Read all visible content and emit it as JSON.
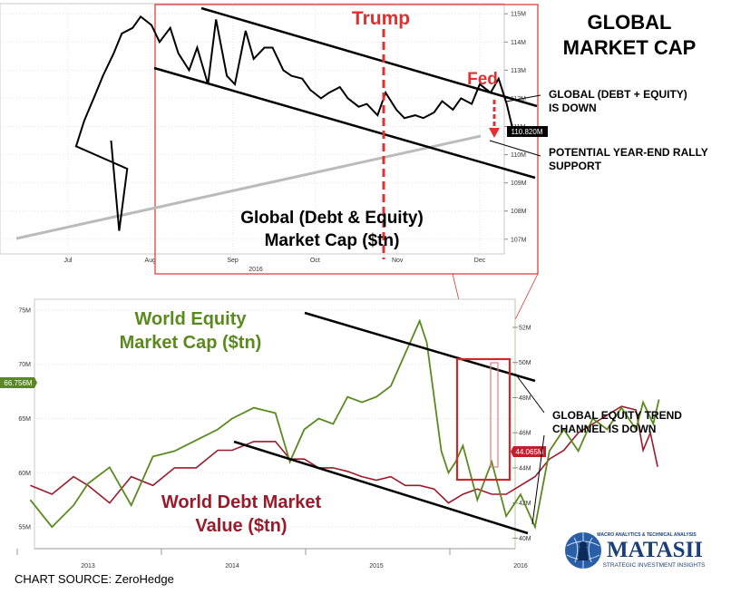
{
  "page": {
    "title_lines": [
      "GLOBAL",
      "MARKET CAP"
    ],
    "source": "CHART SOURCE: ZeroHedge",
    "logo": {
      "top_text": "MACRO ANALYTICS & TECHNICAL ANALYSIS",
      "name": "MATASII",
      "sub_text": "STRATEGIC INVESTMENT INSIGHTS"
    }
  },
  "colors": {
    "equity": "#5a8a1e",
    "debt": "#9b1a2a",
    "highlight": "#e03030",
    "support": "#bbbbbb"
  },
  "chart_data": [
    {
      "type": "line",
      "title": "Global (Debt & Equity) Market Cap ($tn)",
      "title_lines": [
        "Global (Debt & Equity)",
        "Market Cap ($tn)"
      ],
      "x_ticks": [
        "Jul",
        "Aug",
        "Sep",
        "Oct",
        "Nov",
        "Dec"
      ],
      "x_year": "2016",
      "y_ticks": [
        "107M",
        "108M",
        "109M",
        "110M",
        "111M",
        "112M",
        "113M",
        "114M",
        "115M"
      ],
      "ylim": [
        106.8,
        115.2
      ],
      "last_value_label": "110.820M",
      "series": [
        {
          "x": [
            "Jun-24",
            "Jun-27",
            "Jun-30",
            "Jul-05",
            "Jul-08",
            "Jul-12",
            "Jul-15",
            "Jul-19",
            "Jul-22",
            "Jul-26",
            "Jul-29",
            "Aug-02",
            "Aug-05",
            "Aug-09",
            "Aug-12",
            "Aug-16",
            "Aug-19",
            "Aug-23",
            "Aug-26",
            "Aug-30",
            "Sep-02",
            "Sep-06",
            "Sep-09",
            "Sep-13",
            "Sep-16",
            "Sep-20",
            "Sep-23",
            "Sep-27",
            "Sep-30",
            "Oct-04",
            "Oct-07",
            "Oct-11",
            "Oct-14",
            "Oct-18",
            "Oct-21",
            "Oct-25",
            "Oct-28",
            "Nov-01",
            "Nov-04",
            "Nov-08",
            "Nov-11",
            "Nov-15",
            "Nov-18",
            "Nov-22",
            "Nov-25",
            "Nov-29",
            "Dec-02",
            "Dec-06",
            "Dec-09",
            "Dec-12",
            "Dec-14",
            "Dec-16"
          ],
          "values": [
            110.5,
            107.3,
            109.5,
            110.3,
            111.2,
            112.1,
            112.8,
            113.6,
            114.3,
            114.5,
            114.9,
            114.6,
            114.0,
            114.5,
            113.6,
            113.0,
            113.8,
            112.5,
            114.8,
            112.8,
            112.5,
            114.4,
            113.4,
            113.8,
            113.8,
            113.0,
            112.8,
            112.7,
            112.3,
            112.0,
            112.2,
            112.4,
            112.0,
            111.7,
            111.8,
            111.4,
            112.2,
            111.6,
            111.3,
            111.4,
            111.3,
            111.5,
            111.9,
            111.6,
            112.0,
            111.8,
            112.5,
            112.2,
            112.7,
            111.8,
            111.0,
            110.8
          ]
        }
      ],
      "annotations": [
        "Trump",
        "Fed",
        "GLOBAL (DEBT + EQUITY) IS DOWN",
        "POTENTIAL YEAR-END RALLY SUPPORT"
      ]
    },
    {
      "type": "line",
      "x_ticks": [
        "2013",
        "2014",
        "2015",
        "2016"
      ],
      "y_left_ticks": [
        "55M",
        "60M",
        "65M",
        "70M",
        "75M"
      ],
      "y_left_lim": [
        53,
        76
      ],
      "y_right_ticks": [
        "40M",
        "42M",
        "44M",
        "46M",
        "48M",
        "50M",
        "52M"
      ],
      "y_right_lim": [
        39.4,
        53.6
      ],
      "left_value_label": "66.756M",
      "right_value_label": "44.065M",
      "series": [
        {
          "name": "World Equity Market Cap ($tn)",
          "name_lines": [
            "World Equity",
            "Market Cap ($tn)"
          ],
          "axis": "left",
          "x": [
            2012.6,
            2012.75,
            2012.9,
            2013.0,
            2013.15,
            2013.3,
            2013.45,
            2013.6,
            2013.75,
            2013.9,
            2014.0,
            2014.15,
            2014.3,
            2014.4,
            2014.5,
            2014.6,
            2014.7,
            2014.8,
            2014.9,
            2015.0,
            2015.1,
            2015.2,
            2015.3,
            2015.35,
            2015.4,
            2015.45,
            2015.5,
            2015.55,
            2015.6,
            2015.7,
            2015.8,
            2015.9,
            2016.0,
            2016.1,
            2016.2,
            2016.3,
            2016.4,
            2016.5,
            2016.6,
            2016.7,
            2016.8,
            2016.85,
            2016.92,
            2016.96
          ],
          "values": [
            57.5,
            55.0,
            57.0,
            59.0,
            60.5,
            57.0,
            61.5,
            62.0,
            63.0,
            64.0,
            65.0,
            66.0,
            65.5,
            61.0,
            64.0,
            65.0,
            64.5,
            67.0,
            66.5,
            67.0,
            68.0,
            71.0,
            74.0,
            72.0,
            67.0,
            62.0,
            60.0,
            61.0,
            62.5,
            57.5,
            61.0,
            56.0,
            58.0,
            55.0,
            62.0,
            64.0,
            62.0,
            65.0,
            64.0,
            66.0,
            64.0,
            66.5,
            64.5,
            66.756
          ]
        },
        {
          "name": "World Debt Market Value ($tn)",
          "name_lines": [
            "World Debt Market",
            "Value ($tn)"
          ],
          "axis": "right",
          "x": [
            2012.6,
            2012.75,
            2012.9,
            2013.0,
            2013.15,
            2013.3,
            2013.45,
            2013.6,
            2013.75,
            2013.9,
            2014.0,
            2014.15,
            2014.3,
            2014.4,
            2014.5,
            2014.6,
            2014.7,
            2014.8,
            2014.9,
            2015.0,
            2015.1,
            2015.2,
            2015.3,
            2015.4,
            2015.5,
            2015.6,
            2015.7,
            2015.8,
            2015.9,
            2016.0,
            2016.1,
            2016.2,
            2016.3,
            2016.4,
            2016.5,
            2016.6,
            2016.7,
            2016.8,
            2016.85,
            2016.9,
            2016.95
          ],
          "values": [
            43.0,
            42.5,
            43.5,
            43.0,
            42.0,
            43.5,
            43.0,
            44.0,
            44.0,
            45.0,
            45.0,
            45.5,
            45.5,
            44.5,
            44.5,
            44.0,
            44.0,
            43.8,
            43.5,
            43.3,
            43.5,
            43.0,
            43.0,
            42.8,
            42.0,
            42.5,
            42.8,
            42.5,
            42.5,
            43.0,
            43.5,
            44.5,
            45.0,
            46.0,
            46.5,
            47.0,
            47.5,
            47.3,
            45.0,
            46.0,
            44.065
          ]
        }
      ],
      "annotations": [
        "GLOBAL EQUITY TREND CHANNEL IS DOWN"
      ]
    }
  ]
}
